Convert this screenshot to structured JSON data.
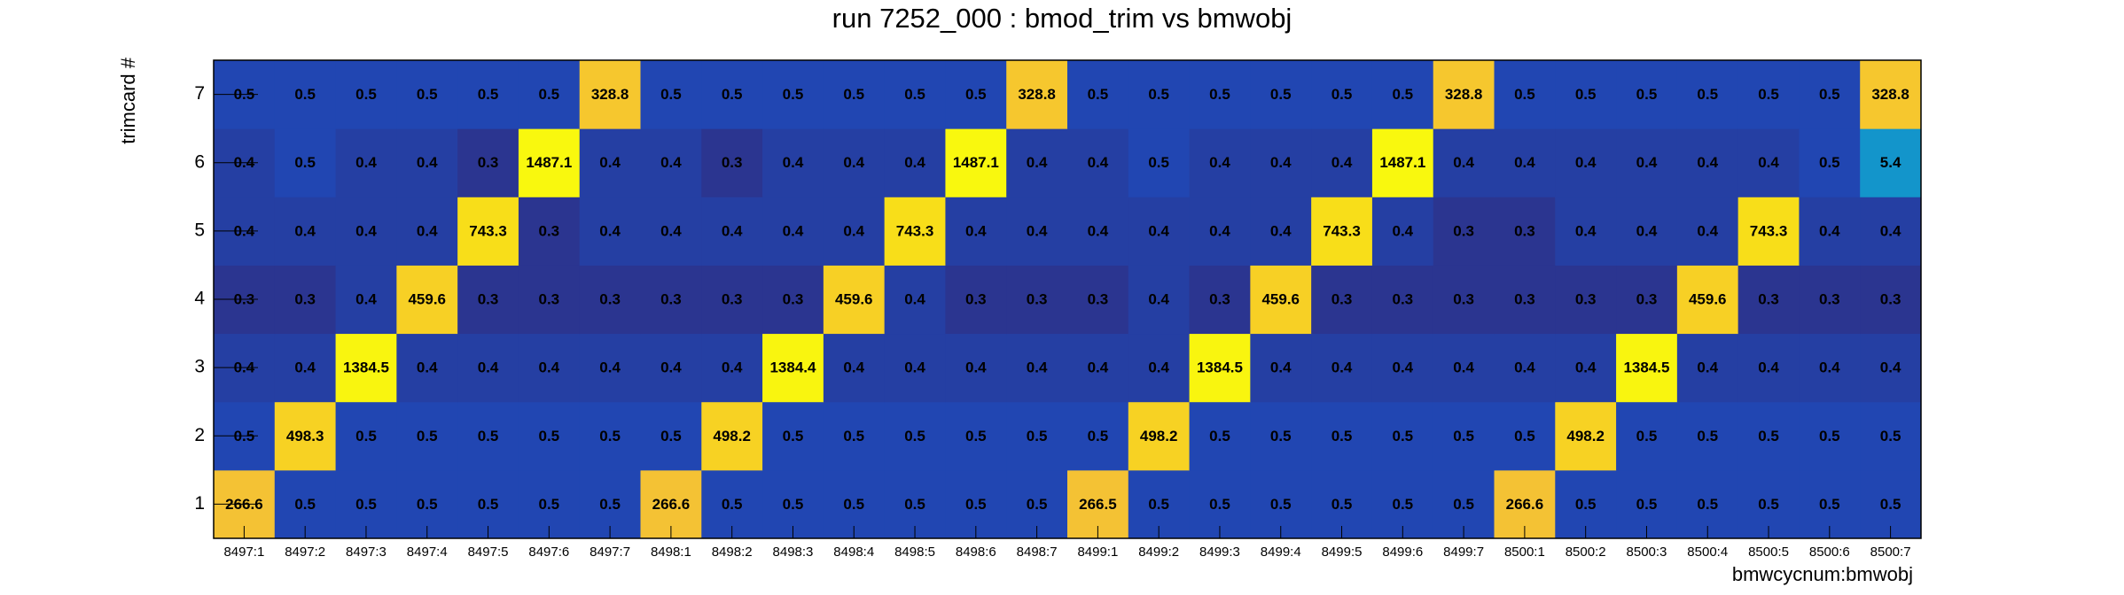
{
  "chart_data": {
    "type": "heatmap",
    "title": "run 7252_000 : bmod_trim vs bmwobj",
    "x_label": "bmwcycnum:bmwobj",
    "y_label": "trimcard #",
    "categories": [
      "8497:1",
      "8497:2",
      "8497:3",
      "8497:4",
      "8497:5",
      "8497:6",
      "8497:7",
      "8498:1",
      "8498:2",
      "8498:3",
      "8498:4",
      "8498:5",
      "8498:6",
      "8498:7",
      "8499:1",
      "8499:2",
      "8499:3",
      "8499:4",
      "8499:5",
      "8499:6",
      "8499:7",
      "8500:1",
      "8500:2",
      "8500:3",
      "8500:4",
      "8500:5",
      "8500:6",
      "8500:7"
    ],
    "y_categories": [
      "1",
      "2",
      "3",
      "4",
      "5",
      "6",
      "7"
    ],
    "values": [
      [
        266.6,
        0.5,
        0.5,
        0.5,
        0.5,
        0.5,
        0.5,
        266.6,
        0.5,
        0.5,
        0.5,
        0.5,
        0.5,
        0.5,
        266.5,
        0.5,
        0.5,
        0.5,
        0.5,
        0.5,
        0.5,
        266.6,
        0.5,
        0.5,
        0.5,
        0.5,
        0.5,
        0.5
      ],
      [
        0.5,
        498.3,
        0.5,
        0.5,
        0.5,
        0.5,
        0.5,
        0.5,
        498.2,
        0.5,
        0.5,
        0.5,
        0.5,
        0.5,
        0.5,
        498.2,
        0.5,
        0.5,
        0.5,
        0.5,
        0.5,
        0.5,
        498.2,
        0.5,
        0.5,
        0.5,
        0.5,
        0.5
      ],
      [
        0.4,
        0.4,
        1384.5,
        0.4,
        0.4,
        0.4,
        0.4,
        0.4,
        0.4,
        1384.4,
        0.4,
        0.4,
        0.4,
        0.4,
        0.4,
        0.4,
        1384.5,
        0.4,
        0.4,
        0.4,
        0.4,
        0.4,
        0.4,
        1384.5,
        0.4,
        0.4,
        0.4,
        0.4
      ],
      [
        0.3,
        0.3,
        0.4,
        459.6,
        0.3,
        0.3,
        0.3,
        0.3,
        0.3,
        0.3,
        459.6,
        0.4,
        0.3,
        0.3,
        0.3,
        0.4,
        0.3,
        459.6,
        0.3,
        0.3,
        0.3,
        0.3,
        0.3,
        0.3,
        459.6,
        0.3,
        0.3,
        0.3
      ],
      [
        0.4,
        0.4,
        0.4,
        0.4,
        743.3,
        0.3,
        0.4,
        0.4,
        0.4,
        0.4,
        0.4,
        743.3,
        0.4,
        0.4,
        0.4,
        0.4,
        0.4,
        0.4,
        743.3,
        0.4,
        0.3,
        0.3,
        0.4,
        0.4,
        0.4,
        743.3,
        0.4,
        0.4
      ],
      [
        0.4,
        0.5,
        0.4,
        0.4,
        0.3,
        1487.1,
        0.4,
        0.4,
        0.3,
        0.4,
        0.4,
        0.4,
        1487.1,
        0.4,
        0.4,
        0.5,
        0.4,
        0.4,
        0.4,
        1487.1,
        0.4,
        0.4,
        0.4,
        0.4,
        0.4,
        0.4,
        0.5,
        5.4
      ],
      [
        0.5,
        0.5,
        0.5,
        0.5,
        0.5,
        0.5,
        328.8,
        0.5,
        0.5,
        0.5,
        0.5,
        0.5,
        0.5,
        328.8,
        0.5,
        0.5,
        0.5,
        0.5,
        0.5,
        0.5,
        328.8,
        0.5,
        0.5,
        0.5,
        0.5,
        0.5,
        0.5,
        328.8
      ]
    ],
    "zlim": [
      0.3,
      1487.1
    ],
    "zlog": true,
    "palette": [
      "#2b3590",
      "#1a52c8",
      "#1a52c8",
      "#128bd0",
      "#14a5c4",
      "#40b59a",
      "#90bb6c",
      "#d0b84e",
      "#f5c233",
      "#f8d81c",
      "#f9f80e"
    ]
  }
}
